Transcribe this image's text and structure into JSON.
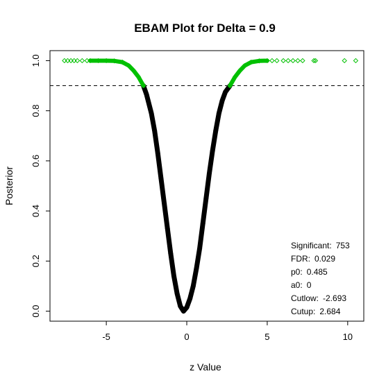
{
  "chart_data": {
    "type": "scatter",
    "title": "EBAM Plot for Delta = 0.9",
    "xlabel": "z Value",
    "ylabel": "Posterior",
    "xlim": [
      -8.5,
      11
    ],
    "ylim": [
      -0.04,
      1.04
    ],
    "xticks": [
      -5,
      0,
      5,
      10
    ],
    "xtick_labels": [
      "-5",
      "0",
      "5",
      "10"
    ],
    "yticks": [
      0.0,
      0.2,
      0.4,
      0.6,
      0.8,
      1.0
    ],
    "ytick_labels": [
      "0.0",
      "0.2",
      "0.4",
      "0.6",
      "0.8",
      "1.0"
    ],
    "threshold_line": {
      "y": 0.9,
      "style": "dashed"
    },
    "colors": {
      "significant": "#00c000",
      "not_significant": "#000000"
    },
    "curve": {
      "description_values": {
        "min_z": -0.2,
        "min_posterior": 0.0,
        "cutlow": -2.693,
        "cutup": 2.684
      },
      "points": [
        [
          -7.6,
          1.0
        ],
        [
          -7.4,
          1.0
        ],
        [
          -7.2,
          1.0
        ],
        [
          -7.0,
          1.0
        ],
        [
          -6.8,
          1.0
        ],
        [
          -6.5,
          1.0
        ],
        [
          -6.2,
          1.0
        ],
        [
          -6.0,
          1.0
        ],
        [
          -5.5,
          1.0
        ],
        [
          -5.0,
          1.0
        ],
        [
          -4.5,
          0.999
        ],
        [
          -4.0,
          0.994
        ],
        [
          -3.6,
          0.98
        ],
        [
          -3.3,
          0.96
        ],
        [
          -3.0,
          0.935
        ],
        [
          -2.693,
          0.9
        ],
        [
          -2.5,
          0.865
        ],
        [
          -2.2,
          0.79
        ],
        [
          -2.0,
          0.72
        ],
        [
          -1.8,
          0.63
        ],
        [
          -1.6,
          0.53
        ],
        [
          -1.4,
          0.43
        ],
        [
          -1.2,
          0.33
        ],
        [
          -1.0,
          0.23
        ],
        [
          -0.8,
          0.14
        ],
        [
          -0.6,
          0.07
        ],
        [
          -0.4,
          0.02
        ],
        [
          -0.2,
          0.0
        ],
        [
          0.0,
          0.015
        ],
        [
          0.2,
          0.05
        ],
        [
          0.4,
          0.1
        ],
        [
          0.6,
          0.17
        ],
        [
          0.8,
          0.25
        ],
        [
          1.0,
          0.35
        ],
        [
          1.2,
          0.45
        ],
        [
          1.4,
          0.55
        ],
        [
          1.6,
          0.64
        ],
        [
          1.8,
          0.72
        ],
        [
          2.0,
          0.79
        ],
        [
          2.2,
          0.84
        ],
        [
          2.4,
          0.875
        ],
        [
          2.684,
          0.9
        ],
        [
          3.0,
          0.935
        ],
        [
          3.3,
          0.96
        ],
        [
          3.6,
          0.98
        ],
        [
          4.0,
          0.994
        ],
        [
          4.5,
          0.999
        ],
        [
          5.0,
          1.0
        ],
        [
          5.3,
          1.0
        ],
        [
          5.6,
          1.0
        ],
        [
          6.0,
          1.0
        ],
        [
          6.3,
          1.0
        ],
        [
          6.6,
          1.0
        ],
        [
          6.9,
          1.0
        ],
        [
          7.2,
          1.0
        ],
        [
          7.9,
          1.0
        ],
        [
          8.0,
          1.0
        ],
        [
          9.8,
          1.0
        ],
        [
          10.5,
          1.0
        ]
      ]
    },
    "annotations": [
      {
        "label": "Significant:",
        "value": "753"
      },
      {
        "label": "FDR:",
        "value": "0.029"
      },
      {
        "label": "p0:",
        "value": "0.485"
      },
      {
        "label": "a0:",
        "value": "0"
      },
      {
        "label": "Cutlow:",
        "value": "-2.693"
      },
      {
        "label": "Cutup:",
        "value": "2.684"
      }
    ]
  }
}
